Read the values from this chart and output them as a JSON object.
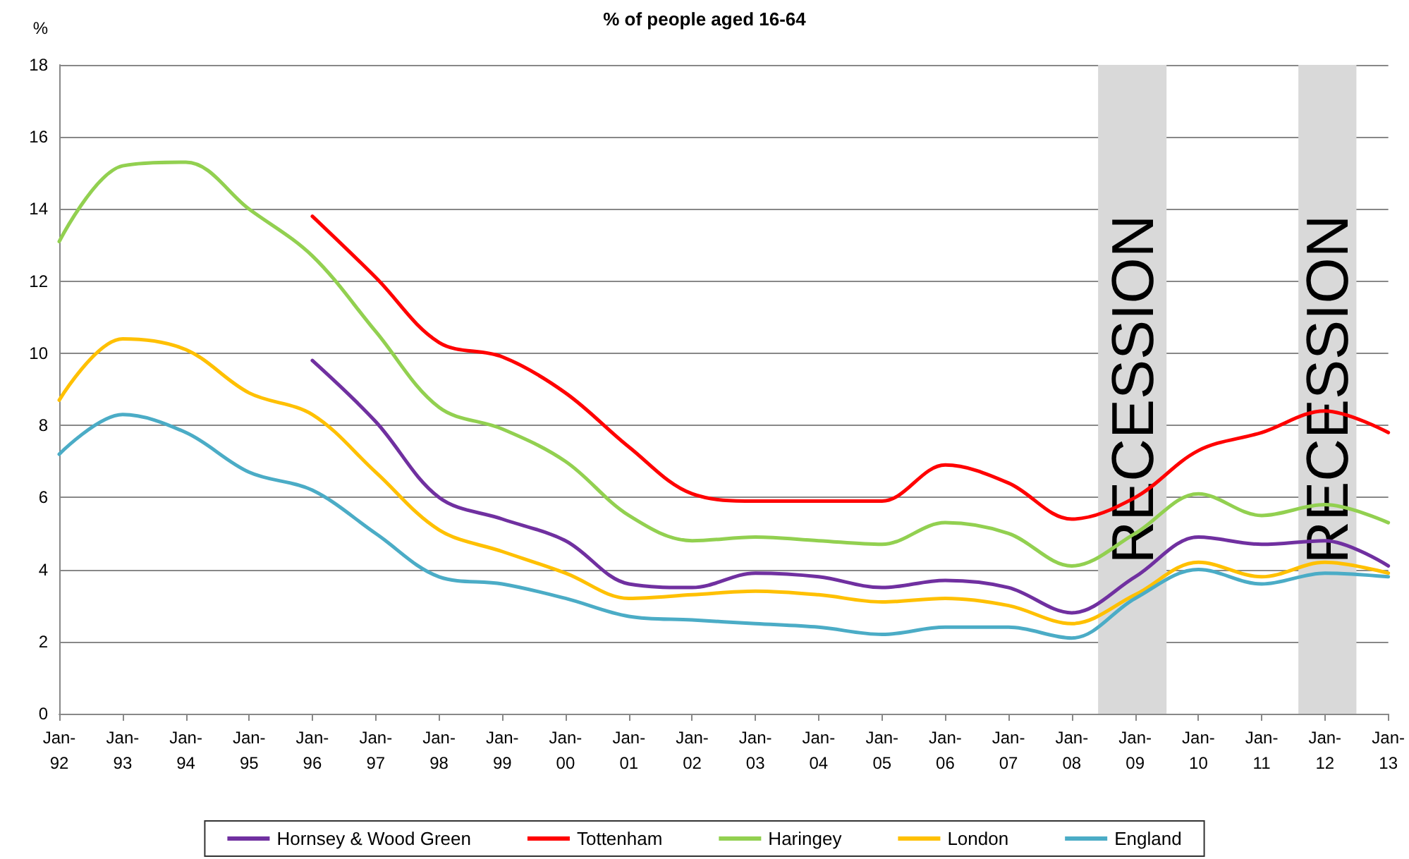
{
  "chart_data": {
    "type": "line",
    "title": "% of people aged 16-64",
    "ylabel": "%",
    "x": [
      "1992-01",
      "1993-01",
      "1994-01",
      "1995-01",
      "1996-01",
      "1997-01",
      "1998-01",
      "1999-01",
      "2000-01",
      "2001-01",
      "2002-01",
      "2003-01",
      "2004-01",
      "2005-01",
      "2006-01",
      "2007-01",
      "2008-01",
      "2009-01",
      "2010-01",
      "2011-01",
      "2012-01",
      "2013-01"
    ],
    "series": [
      {
        "name": "Hornsey & Wood Green",
        "color": "#7030a0",
        "values": [
          null,
          null,
          null,
          null,
          9.8,
          8.1,
          6.0,
          5.4,
          4.8,
          3.6,
          3.5,
          3.9,
          3.8,
          3.5,
          3.7,
          3.5,
          2.8,
          3.8,
          4.9,
          4.7,
          4.8,
          4.1
        ]
      },
      {
        "name": "Tottenham",
        "color": "#ff0000",
        "values": [
          null,
          null,
          null,
          null,
          13.8,
          12.1,
          10.3,
          9.9,
          8.9,
          7.4,
          6.1,
          5.9,
          5.9,
          5.9,
          6.9,
          6.4,
          5.4,
          6.0,
          7.3,
          7.8,
          8.4,
          7.8
        ]
      },
      {
        "name": "Haringey",
        "color": "#92d050",
        "values": [
          13.1,
          15.2,
          15.3,
          14.0,
          12.7,
          10.6,
          8.5,
          7.9,
          7.0,
          5.5,
          4.8,
          4.9,
          4.8,
          4.7,
          5.3,
          5.0,
          4.1,
          5.0,
          6.1,
          5.5,
          5.8,
          5.3
        ]
      },
      {
        "name": "London",
        "color": "#ffc000",
        "values": [
          8.7,
          10.4,
          10.1,
          8.9,
          8.3,
          6.7,
          5.1,
          4.5,
          3.9,
          3.2,
          3.3,
          3.4,
          3.3,
          3.1,
          3.2,
          3.0,
          2.5,
          3.3,
          4.2,
          3.8,
          4.2,
          3.9
        ]
      },
      {
        "name": "England",
        "color": "#4bacc6",
        "values": [
          7.2,
          8.3,
          7.8,
          6.7,
          6.2,
          5.0,
          3.8,
          3.6,
          3.2,
          2.7,
          2.6,
          2.5,
          2.4,
          2.2,
          2.4,
          2.4,
          2.1,
          3.2,
          4.0,
          3.6,
          3.9,
          3.8
        ]
      }
    ],
    "xlim": [
      "1992-01",
      "2013-01"
    ],
    "xticks": [
      {
        "value": "1992-01",
        "label": "Jan-92"
      },
      {
        "value": "1993-01",
        "label": "Jan-93"
      },
      {
        "value": "1994-01",
        "label": "Jan-94"
      },
      {
        "value": "1995-01",
        "label": "Jan-95"
      },
      {
        "value": "1996-01",
        "label": "Jan-96"
      },
      {
        "value": "1997-01",
        "label": "Jan-97"
      },
      {
        "value": "1998-01",
        "label": "Jan-98"
      },
      {
        "value": "1999-01",
        "label": "Jan-99"
      },
      {
        "value": "2000-01",
        "label": "Jan-00"
      },
      {
        "value": "2001-01",
        "label": "Jan-01"
      },
      {
        "value": "2002-01",
        "label": "Jan-02"
      },
      {
        "value": "2003-01",
        "label": "Jan-03"
      },
      {
        "value": "2004-01",
        "label": "Jan-04"
      },
      {
        "value": "2005-01",
        "label": "Jan-05"
      },
      {
        "value": "2006-01",
        "label": "Jan-06"
      },
      {
        "value": "2007-01",
        "label": "Jan-07"
      },
      {
        "value": "2008-01",
        "label": "Jan-08"
      },
      {
        "value": "2009-01",
        "label": "Jan-09"
      },
      {
        "value": "2010-01",
        "label": "Jan-10"
      },
      {
        "value": "2011-01",
        "label": "Jan-11"
      },
      {
        "value": "2012-01",
        "label": "Jan-12"
      },
      {
        "value": "2013-01",
        "label": "Jan-13"
      }
    ],
    "ylim": [
      0,
      18
    ],
    "yticks": [
      0,
      2,
      4,
      6,
      8,
      10,
      12,
      14,
      16,
      18
    ],
    "bands": [
      {
        "axis": "x",
        "from": "2008-06",
        "to": "2009-07",
        "label": "RECESSION",
        "color": "#d9d9d9"
      },
      {
        "axis": "x",
        "from": "2011-08",
        "to": "2012-07",
        "label": "RECESSION",
        "color": "#d9d9d9"
      }
    ],
    "grid": "y",
    "legend": "bottom",
    "marker": "none",
    "line_style": "solid"
  }
}
